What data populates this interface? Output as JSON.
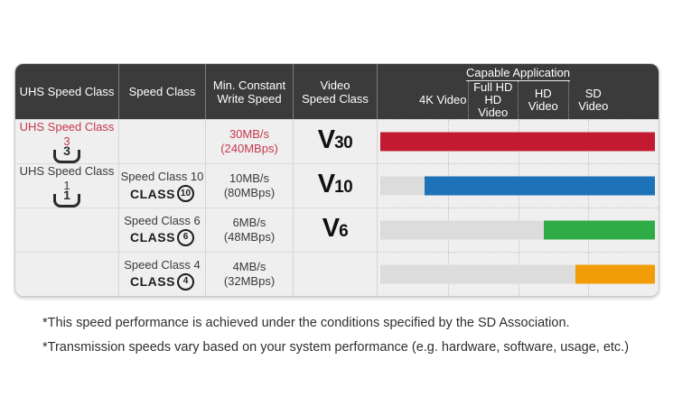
{
  "header": {
    "uhs_speed_class": "UHS Speed Class",
    "speed_class": "Speed Class",
    "min_constant_line1": "Min. Constant",
    "min_constant_line2": "Write Speed",
    "video_speed_line1": "Video",
    "video_speed_line2": "Speed Class",
    "capable_application": "Capable Application",
    "sub_columns": [
      {
        "line1": "4K Video",
        "line2": ""
      },
      {
        "line1": "Full HD",
        "line2": "HD Video"
      },
      {
        "line1": "HD Video",
        "line2": ""
      },
      {
        "line1": "SD Video",
        "line2": ""
      }
    ]
  },
  "rows": [
    {
      "uhs_label": "UHS Speed Class 3",
      "uhs_icon_number": "3",
      "speed_class_label": "",
      "class_icon_word": "",
      "class_icon_number": "",
      "write_speed_line1": "30MB/s",
      "write_speed_line2": "(240MBps)",
      "v_letter": "V",
      "v_number": "30",
      "bar": {
        "color": "#c21a31",
        "start_pct": 0
      }
    },
    {
      "uhs_label": "UHS Speed Class 1",
      "uhs_icon_number": "1",
      "speed_class_label": "Speed Class 10",
      "class_icon_word": "CLASS",
      "class_icon_number": "10",
      "write_speed_line1": "10MB/s",
      "write_speed_line2": "(80MBps)",
      "v_letter": "V",
      "v_number": "10",
      "bar": {
        "color": "#1e72b8",
        "start_pct": 16
      }
    },
    {
      "uhs_label": "",
      "uhs_icon_number": "",
      "speed_class_label": "Speed Class 6",
      "class_icon_word": "CLASS",
      "class_icon_number": "6",
      "write_speed_line1": "6MB/s",
      "write_speed_line2": "(48MBps)",
      "v_letter": "V",
      "v_number": "6",
      "bar": {
        "color": "#2fac46",
        "start_pct": 59.5
      }
    },
    {
      "uhs_label": "",
      "uhs_icon_number": "",
      "speed_class_label": "Speed Class 4",
      "class_icon_word": "CLASS",
      "class_icon_number": "4",
      "write_speed_line1": "4MB/s",
      "write_speed_line2": "(32MBps)",
      "v_letter": "",
      "v_number": "",
      "bar": {
        "color": "#f29c07",
        "start_pct": 71
      }
    }
  ],
  "footnotes": [
    "*This speed performance is achieved under the conditions specified by the SD Association.",
    "*Transmission speeds vary based on your system performance (e.g. hardware, software, usage, etc.)"
  ],
  "colors": {
    "header_bg": "#3b3b3b",
    "row_bg": "#efefef",
    "track_gray": "#dcdcdc",
    "red": "#c21a31",
    "blue": "#1e72b8",
    "green": "#2fac46",
    "orange": "#f29c07",
    "red_text": "#c43a4c"
  }
}
